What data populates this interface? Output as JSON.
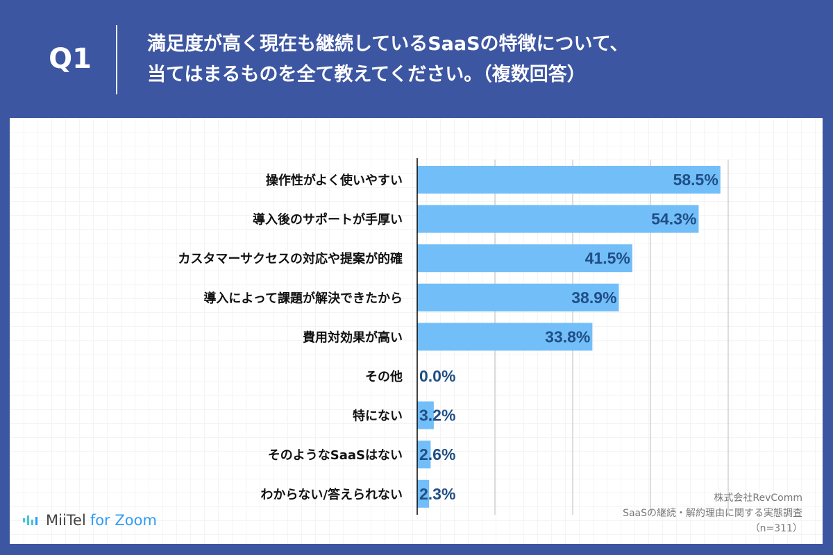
{
  "header": {
    "question_no": "Q1",
    "title_line1": "満足度が高く現在も継続しているSaaSの特徴について、",
    "title_line2": "当てはまるものを全て教えてください。（複数回答）"
  },
  "colors": {
    "background": "#3d56a2",
    "bar": "#72bef8",
    "value_label": "#1f4e85"
  },
  "chart_data": {
    "type": "bar",
    "orientation": "horizontal",
    "categories": [
      "操作性がよく使いやすい",
      "導入後のサポートが手厚い",
      "カスタマーサクセスの対応や提案が的確",
      "導入によって課題が解決できたから",
      "費用対効果が高い",
      "その他",
      "特にない",
      "そのようなSaaSはない",
      "わからない/答えられない"
    ],
    "values": [
      58.5,
      54.3,
      41.5,
      38.9,
      33.8,
      0.0,
      3.2,
      2.6,
      2.3
    ],
    "value_labels": [
      "58.5%",
      "54.3%",
      "41.5%",
      "38.9%",
      "33.8%",
      "0.0%",
      "3.2%",
      "2.6%",
      "2.3%"
    ],
    "xlim": [
      0,
      60
    ],
    "grid": true,
    "gridlines": [
      15,
      30,
      45,
      60
    ]
  },
  "source": {
    "company": "株式会社RevComm",
    "survey": "SaaSの継続・解約理由に関する実態調査",
    "n": "（n=311）"
  },
  "logo": {
    "brand": "MiiTel",
    "suffix": "for Zoom"
  }
}
